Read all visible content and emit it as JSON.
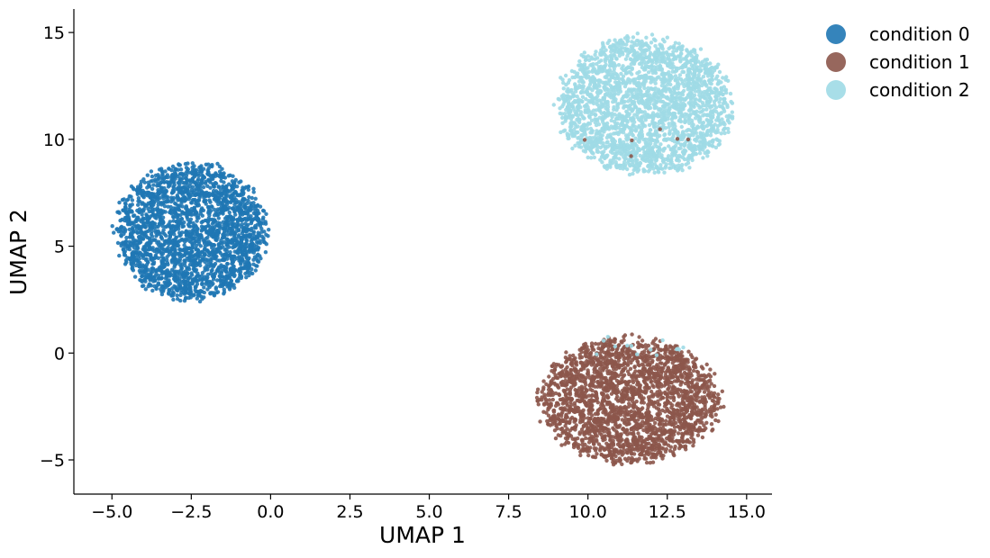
{
  "chart_data": {
    "type": "scatter",
    "title": "",
    "xlabel": "UMAP 1",
    "ylabel": "UMAP 2",
    "xlim": [
      -6.2,
      15.8
    ],
    "ylim": [
      -6.6,
      16.1
    ],
    "x_ticks": [
      -5.0,
      -2.5,
      0.0,
      2.5,
      5.0,
      7.5,
      10.0,
      12.5,
      15.0
    ],
    "x_tick_labels": [
      "−5.0",
      "−2.5",
      "0.0",
      "2.5",
      "5.0",
      "7.5",
      "10.0",
      "12.5",
      "15.0"
    ],
    "y_ticks": [
      -5,
      0,
      5,
      10,
      15
    ],
    "y_tick_labels": [
      "−5",
      "0",
      "5",
      "10",
      "15"
    ],
    "grid": false,
    "legend_position": "outside-top-right",
    "series": [
      {
        "name": "condition 0",
        "color": "#1f77b4",
        "clusters": [
          {
            "center_x": -2.5,
            "center_y": 5.7,
            "radius_x": 2.5,
            "radius_y": 3.4,
            "count": 2400
          }
        ]
      },
      {
        "name": "condition 1",
        "color": "#8c564b",
        "clusters": [
          {
            "center_x": 11.3,
            "center_y": -2.2,
            "radius_x": 3.0,
            "radius_y": 3.1,
            "count": 2400
          },
          {
            "center_x": 11.8,
            "center_y": 10.0,
            "radius_x": 2.5,
            "radius_y": 1.5,
            "count": 6
          }
        ]
      },
      {
        "name": "condition 2",
        "color": "#9edae5",
        "clusters": [
          {
            "center_x": 11.8,
            "center_y": 11.6,
            "radius_x": 2.9,
            "radius_y": 3.4,
            "count": 2400
          },
          {
            "center_x": 11.5,
            "center_y": 0.3,
            "radius_x": 2.3,
            "radius_y": 0.6,
            "count": 14
          }
        ]
      }
    ]
  }
}
